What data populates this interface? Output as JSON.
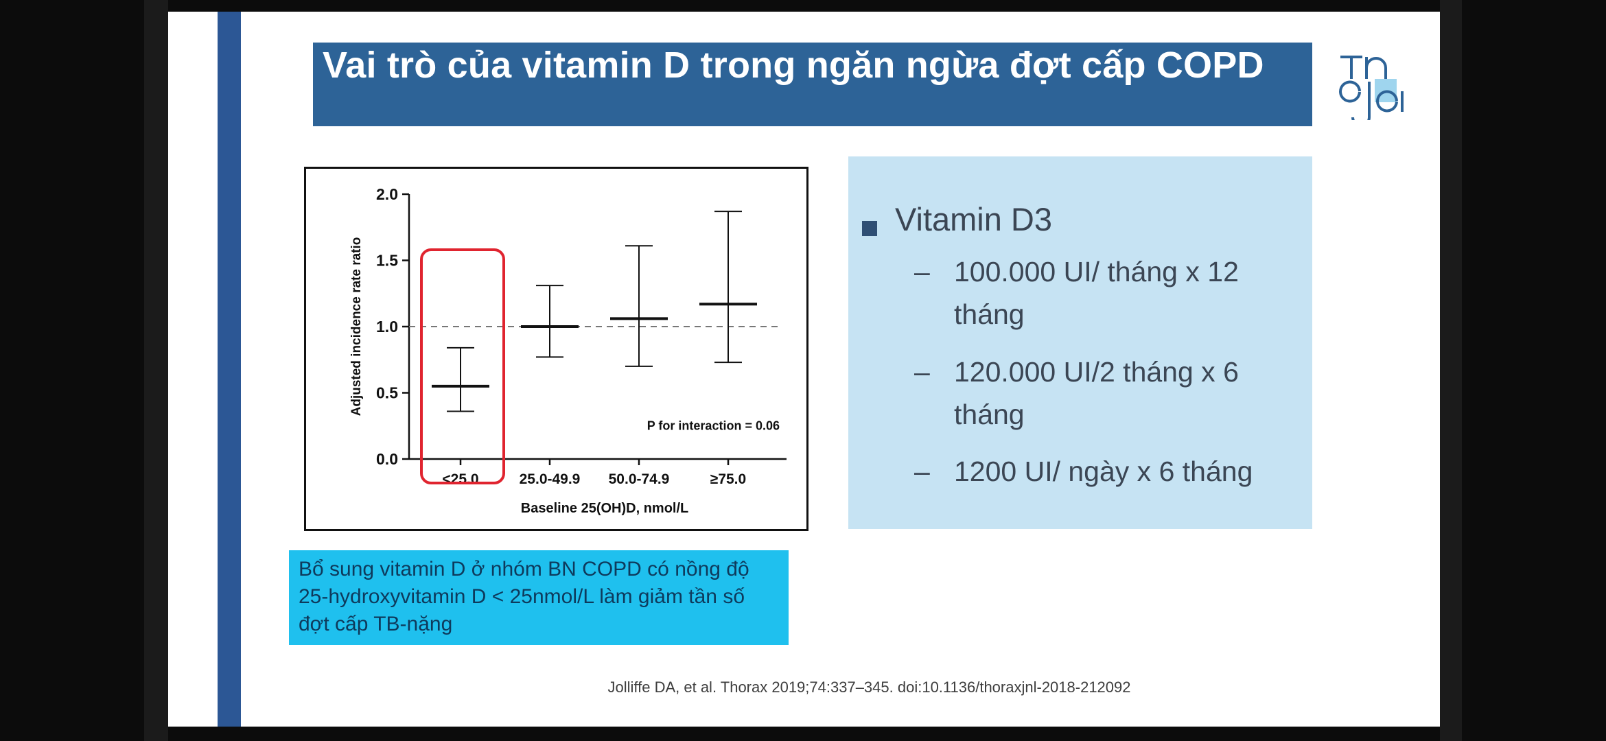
{
  "slide": {
    "title": "Vai trò của vitamin D trong ngăn ngừa đợt cấp COPD",
    "citation": "Jolliffe DA, et al. Thorax 2019;74:337–345. doi:10.1136/thoraxjnl-2018-212092"
  },
  "logo": {
    "icon": "tgh-logo-icon",
    "color": "#2d6397",
    "accent": "#9fd5ee"
  },
  "bullets": {
    "main": "Vitamin D3",
    "dash": "–",
    "items": [
      "100.000 UI/ tháng x 12 tháng",
      "120.000 UI/2 tháng x 6 tháng",
      "1200 UI/ ngày x 6 tháng"
    ]
  },
  "note": "Bổ sung vitamin D ở nhóm BN COPD  có nồng độ 25-hydroxyvitamin D < 25nmol/L làm giảm tần số đợt cấp TB-nặng",
  "chart_data": {
    "type": "scatter",
    "xlabel": "Baseline 25(OH)D, nmol/L",
    "ylabel": "Adjusted incidence rate ratio",
    "categories": [
      "<25.0",
      "25.0-49.9",
      "50.0-74.9",
      "≥75.0"
    ],
    "series": [
      {
        "point": [
          0.55,
          1.0,
          1.06,
          1.17
        ],
        "lower": [
          0.36,
          0.77,
          0.7,
          0.73
        ],
        "upper": [
          0.84,
          1.31,
          1.61,
          1.87
        ]
      }
    ],
    "ylim": [
      0,
      2.0
    ],
    "yticks": [
      "0.0",
      "0.5",
      "1.0",
      "1.5",
      "2.0"
    ],
    "reference_line": 1.0,
    "annotation": "P for interaction = 0.06",
    "highlight_category": "<25.0",
    "highlight_color": "#e0242f",
    "grid": false
  }
}
